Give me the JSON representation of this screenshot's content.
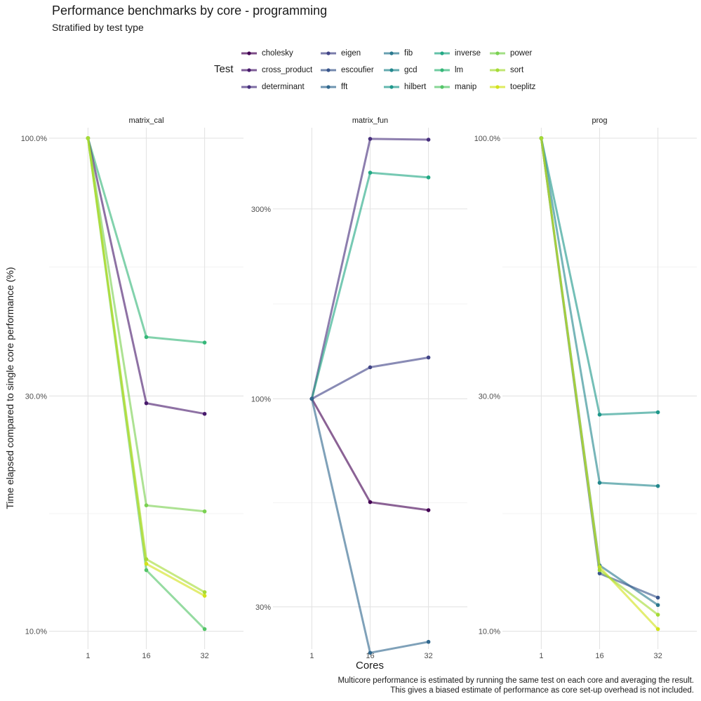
{
  "header": {
    "title": "Performance benchmarks by core - programming",
    "subtitle": "Stratified by test type"
  },
  "legend": {
    "title": "Test",
    "entries": [
      {
        "label": "cholesky",
        "color": "#440154"
      },
      {
        "label": "cross_product",
        "color": "#481a6c"
      },
      {
        "label": "determinant",
        "color": "#472f7d"
      },
      {
        "label": "eigen",
        "color": "#414487"
      },
      {
        "label": "escoufier",
        "color": "#39568c"
      },
      {
        "label": "fft",
        "color": "#31688e"
      },
      {
        "label": "fib",
        "color": "#2a788e"
      },
      {
        "label": "gcd",
        "color": "#23888e"
      },
      {
        "label": "hilbert",
        "color": "#1f988b"
      },
      {
        "label": "inverse",
        "color": "#22a884"
      },
      {
        "label": "lm",
        "color": "#35b779"
      },
      {
        "label": "manip",
        "color": "#54c568"
      },
      {
        "label": "power",
        "color": "#7ad151"
      },
      {
        "label": "sort",
        "color": "#a5db36"
      },
      {
        "label": "toeplitz",
        "color": "#d2e21b"
      }
    ]
  },
  "axes": {
    "xlabel": "Cores",
    "ylabel": "Time elapsed compared to single core performance (%)"
  },
  "caption": {
    "line1": "Multicore performance is estimated by running the same test on each core and averaging the result.",
    "line2": "This gives a biased estimate of performance as core set-up overhead is not included."
  },
  "chart_data": [
    {
      "type": "line",
      "facet": "matrix_cal",
      "x": [
        "1",
        "16",
        "32"
      ],
      "yscale": "log10",
      "ylim": [
        0.092,
        1.05
      ],
      "yticks": [
        1.0,
        0.3,
        0.1
      ],
      "ytick_labels": [
        "100.0%",
        "30.0%",
        "10.0%"
      ],
      "series": [
        {
          "name": "lm",
          "color": "#35b779",
          "values": [
            1.0,
            0.395,
            0.385
          ]
        },
        {
          "name": "cross_product",
          "color": "#481a6c",
          "values": [
            1.0,
            0.29,
            0.276
          ]
        },
        {
          "name": "power",
          "color": "#7ad151",
          "values": [
            1.0,
            0.18,
            0.175
          ]
        },
        {
          "name": "manip",
          "color": "#54c568",
          "values": [
            1.0,
            0.133,
            0.101
          ]
        },
        {
          "name": "toeplitz",
          "color": "#d2e21b",
          "values": [
            1.0,
            0.137,
            0.118
          ]
        },
        {
          "name": "sort",
          "color": "#a5db36",
          "values": [
            1.0,
            0.14,
            0.12
          ]
        }
      ]
    },
    {
      "type": "line",
      "facet": "matrix_fun",
      "x": [
        "1",
        "16",
        "32"
      ],
      "yscale": "log10",
      "ylim": [
        0.235,
        4.8
      ],
      "yticks": [
        3.0,
        1.0,
        0.3
      ],
      "ytick_labels": [
        "300%",
        "100%",
        "30%"
      ],
      "series": [
        {
          "name": "determinant",
          "color": "#472f7d",
          "values": [
            1.0,
            4.5,
            4.48
          ]
        },
        {
          "name": "inverse",
          "color": "#22a884",
          "values": [
            1.0,
            3.7,
            3.6
          ]
        },
        {
          "name": "eigen",
          "color": "#414487",
          "values": [
            1.0,
            1.2,
            1.27
          ]
        },
        {
          "name": "cholesky",
          "color": "#440154",
          "values": [
            1.0,
            0.55,
            0.525
          ]
        },
        {
          "name": "fft",
          "color": "#31688e",
          "values": [
            1.0,
            0.23,
            0.245
          ]
        }
      ]
    },
    {
      "type": "line",
      "facet": "prog",
      "x": [
        "1",
        "16",
        "32"
      ],
      "yscale": "log10",
      "ylim": [
        0.092,
        1.05
      ],
      "yticks": [
        1.0,
        0.3,
        0.1
      ],
      "ytick_labels": [
        "100.0%",
        "30.0%",
        "10.0%"
      ],
      "series": [
        {
          "name": "hilbert",
          "color": "#1f988b",
          "values": [
            1.0,
            0.275,
            0.278
          ]
        },
        {
          "name": "gcd",
          "color": "#23888e",
          "values": [
            1.0,
            0.2,
            0.197
          ]
        },
        {
          "name": "fib",
          "color": "#2a788e",
          "values": [
            1.0,
            0.136,
            0.113
          ]
        },
        {
          "name": "escoufier",
          "color": "#39568c",
          "values": [
            1.0,
            0.131,
            0.117
          ]
        },
        {
          "name": "toeplitz",
          "color": "#d2e21b",
          "values": [
            1.0,
            0.135,
            0.101
          ]
        },
        {
          "name": "sort",
          "color": "#a5db36",
          "values": [
            1.0,
            0.133,
            0.108
          ]
        }
      ]
    }
  ]
}
